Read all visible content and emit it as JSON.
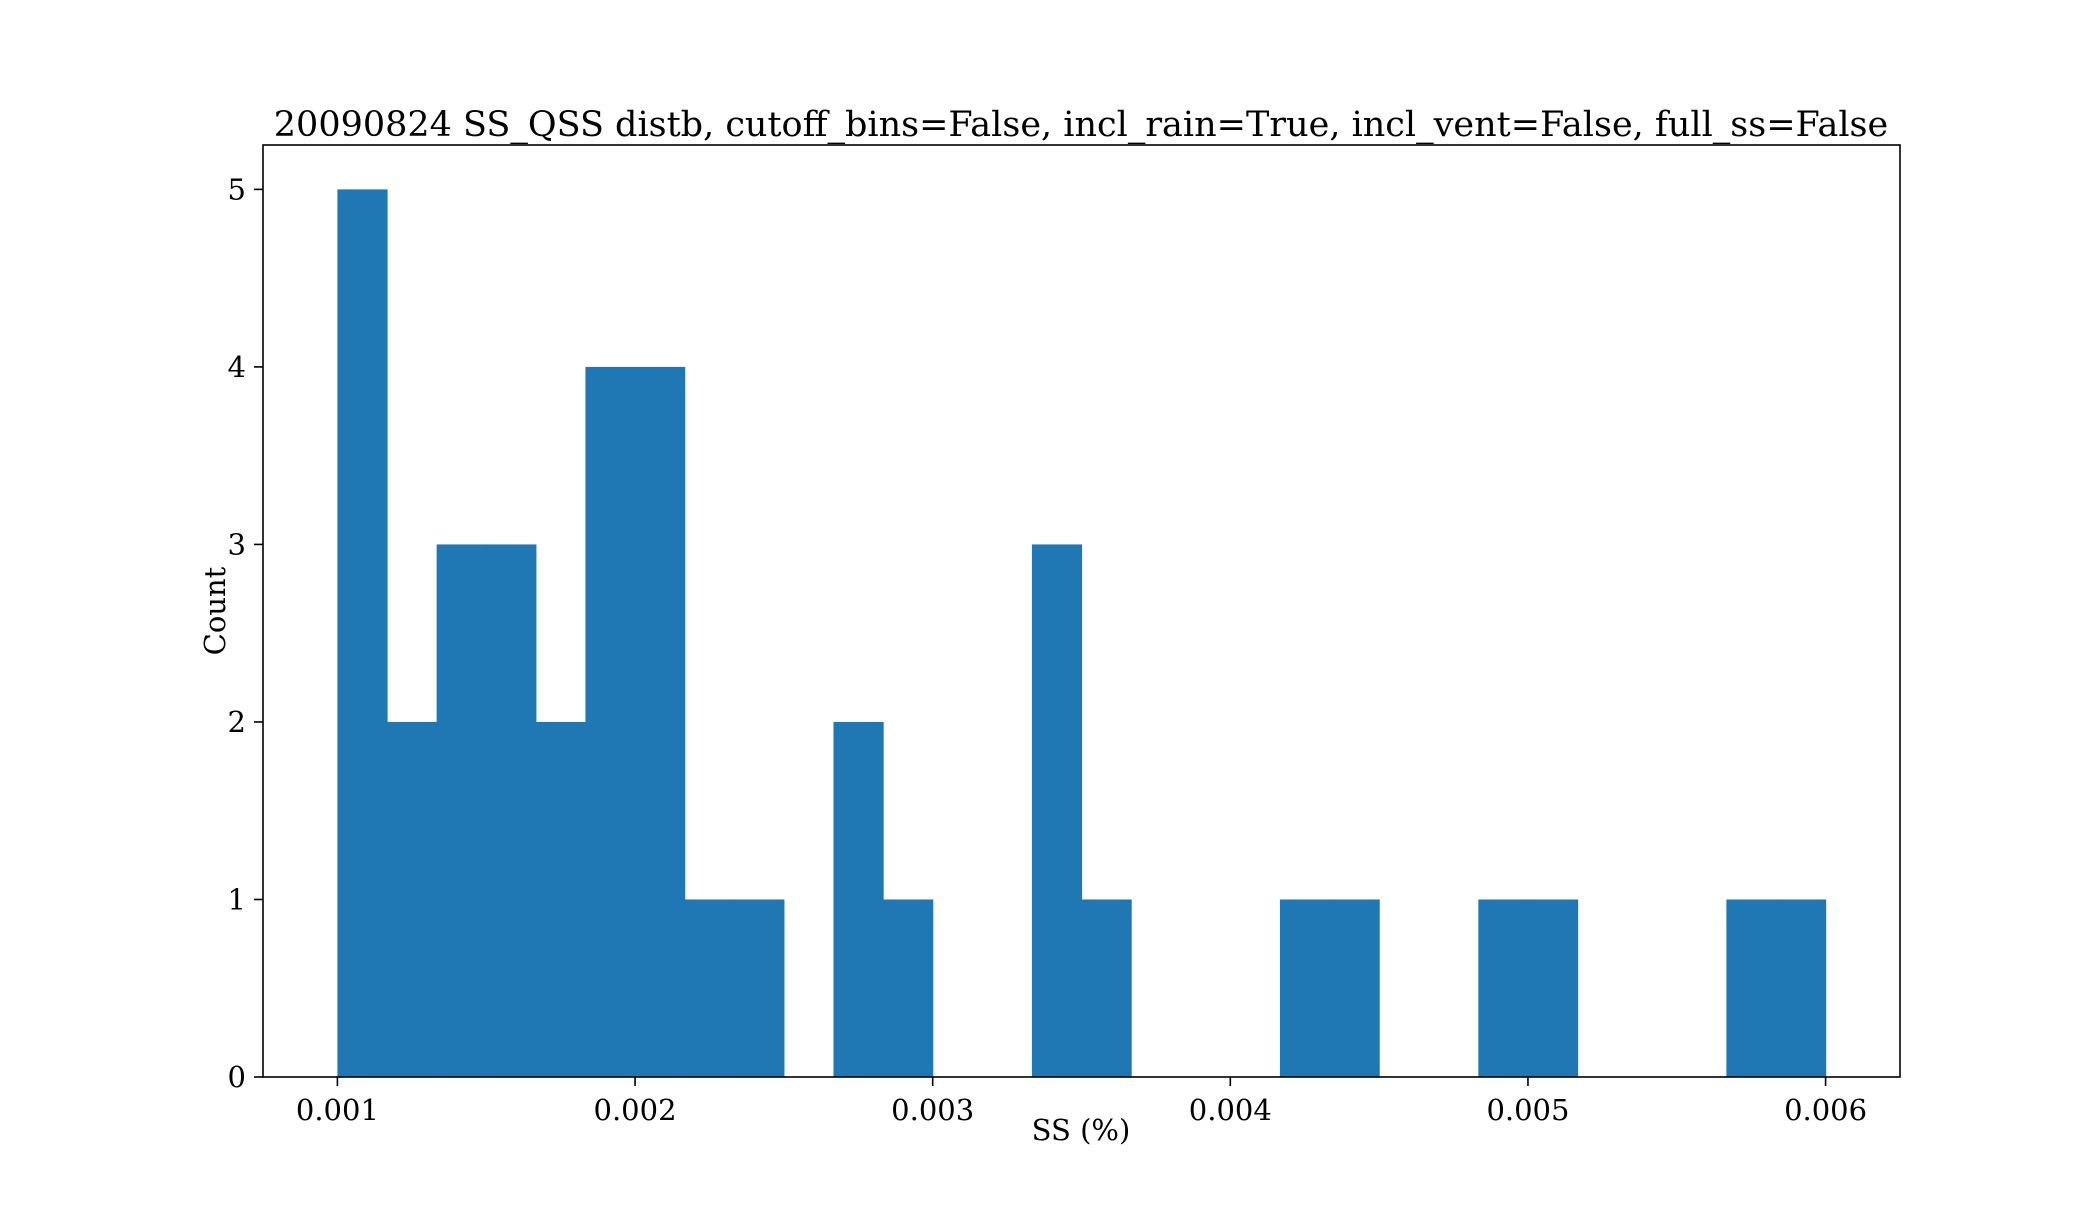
{
  "chart_data": {
    "type": "bar",
    "title": "20090824 SS_QSS distb, cutoff_bins=False, incl_rain=True, incl_vent=False, full_ss=False",
    "xlabel": "SS (%)",
    "ylabel": "Count",
    "xlim": [
      0.00075,
      0.00625
    ],
    "ylim": [
      0,
      5.25
    ],
    "xticks": [
      "0.001",
      "0.002",
      "0.003",
      "0.004",
      "0.005",
      "0.006"
    ],
    "yticks": [
      "0",
      "1",
      "2",
      "3",
      "4",
      "5"
    ],
    "bar_color": "#1f77b4",
    "grid": false,
    "bin_start": 0.001,
    "bin_end": 0.006,
    "values": [
      5,
      2,
      3,
      3,
      2,
      4,
      4,
      1,
      1,
      0,
      2,
      1,
      0,
      0,
      3,
      1,
      0,
      0,
      0,
      1,
      1,
      0,
      0,
      1,
      1,
      0,
      0,
      0,
      1,
      1
    ]
  }
}
